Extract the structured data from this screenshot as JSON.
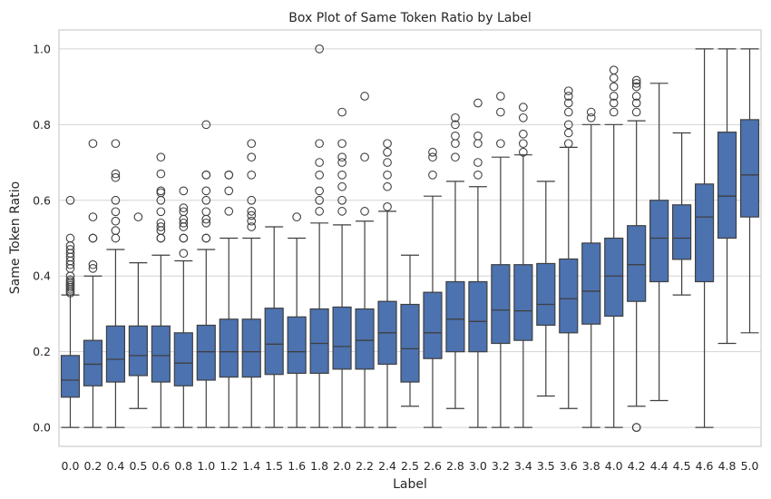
{
  "chart_data": {
    "type": "box",
    "title": "Box Plot of Same Token Ratio by Label",
    "xlabel": "Label",
    "ylabel": "Same Token Ratio",
    "ylim": [
      -0.05,
      1.05
    ],
    "yticks": [
      "0.0",
      "0.2",
      "0.4",
      "0.6",
      "0.8",
      "1.0"
    ],
    "grid": true,
    "colors": {
      "box": "#4c72b0",
      "line": "#3f3f3f",
      "grid": "#d3d3d3"
    },
    "categories": [
      "0.0",
      "0.2",
      "0.4",
      "0.5",
      "0.6",
      "0.8",
      "1.0",
      "1.2",
      "1.4",
      "1.5",
      "1.6",
      "1.8",
      "2.0",
      "2.2",
      "2.4",
      "2.5",
      "2.6",
      "2.8",
      "3.0",
      "3.2",
      "3.4",
      "3.5",
      "3.6",
      "3.8",
      "4.0",
      "4.2",
      "4.4",
      "4.5",
      "4.6",
      "4.8",
      "5.0"
    ],
    "boxes": [
      {
        "whislo": 0.0,
        "q1": 0.08,
        "med": 0.125,
        "q3": 0.19,
        "whishi": 0.35,
        "fliers": [
          0.355,
          0.36,
          0.365,
          0.37,
          0.375,
          0.38,
          0.385,
          0.39,
          0.4,
          0.42,
          0.43,
          0.44,
          0.45,
          0.46,
          0.47,
          0.48,
          0.5,
          0.6
        ]
      },
      {
        "whislo": 0.0,
        "q1": 0.11,
        "med": 0.167,
        "q3": 0.23,
        "whishi": 0.4,
        "fliers": [
          0.42,
          0.43,
          0.5,
          0.5,
          0.556,
          0.75
        ]
      },
      {
        "whislo": 0.0,
        "q1": 0.12,
        "med": 0.18,
        "q3": 0.268,
        "whishi": 0.47,
        "fliers": [
          0.5,
          0.52,
          0.545,
          0.57,
          0.6,
          0.66,
          0.67,
          0.75
        ]
      },
      {
        "whislo": 0.05,
        "q1": 0.137,
        "med": 0.19,
        "q3": 0.268,
        "whishi": 0.435,
        "fliers": [
          0.556
        ]
      },
      {
        "whislo": 0.0,
        "q1": 0.12,
        "med": 0.19,
        "q3": 0.268,
        "whishi": 0.455,
        "fliers": [
          0.5,
          0.5,
          0.52,
          0.53,
          0.54,
          0.57,
          0.6,
          0.62,
          0.625,
          0.67,
          0.714
        ]
      },
      {
        "whislo": 0.0,
        "q1": 0.11,
        "med": 0.17,
        "q3": 0.25,
        "whishi": 0.44,
        "fliers": [
          0.46,
          0.5,
          0.5,
          0.53,
          0.54,
          0.55,
          0.57,
          0.58,
          0.625
        ]
      },
      {
        "whislo": 0.0,
        "q1": 0.125,
        "med": 0.2,
        "q3": 0.27,
        "whishi": 0.47,
        "fliers": [
          0.5,
          0.5,
          0.54,
          0.55,
          0.57,
          0.6,
          0.625,
          0.667,
          0.667,
          0.8
        ]
      },
      {
        "whislo": 0.0,
        "q1": 0.133,
        "med": 0.2,
        "q3": 0.286,
        "whishi": 0.5,
        "fliers": [
          0.571,
          0.625,
          0.667,
          0.667
        ]
      },
      {
        "whislo": 0.0,
        "q1": 0.133,
        "med": 0.2,
        "q3": 0.286,
        "whishi": 0.5,
        "fliers": [
          0.53,
          0.545,
          0.56,
          0.571,
          0.6,
          0.667,
          0.714,
          0.75
        ]
      },
      {
        "whislo": 0.0,
        "q1": 0.14,
        "med": 0.22,
        "q3": 0.315,
        "whishi": 0.53,
        "fliers": []
      },
      {
        "whislo": 0.0,
        "q1": 0.143,
        "med": 0.2,
        "q3": 0.292,
        "whishi": 0.5,
        "fliers": [
          0.556
        ]
      },
      {
        "whislo": 0.0,
        "q1": 0.143,
        "med": 0.222,
        "q3": 0.313,
        "whishi": 0.54,
        "fliers": [
          0.571,
          0.6,
          0.625,
          0.667,
          0.7,
          0.75,
          1.0
        ]
      },
      {
        "whislo": 0.0,
        "q1": 0.154,
        "med": 0.214,
        "q3": 0.318,
        "whishi": 0.535,
        "fliers": [
          0.571,
          0.6,
          0.636,
          0.667,
          0.7,
          0.714,
          0.75,
          0.833
        ]
      },
      {
        "whislo": 0.0,
        "q1": 0.154,
        "med": 0.23,
        "q3": 0.313,
        "whishi": 0.545,
        "fliers": [
          0.571,
          0.714,
          0.875
        ]
      },
      {
        "whislo": 0.0,
        "q1": 0.167,
        "med": 0.25,
        "q3": 0.333,
        "whishi": 0.571,
        "fliers": [
          0.583,
          0.636,
          0.667,
          0.7,
          0.727,
          0.75
        ]
      },
      {
        "whislo": 0.056,
        "q1": 0.12,
        "med": 0.208,
        "q3": 0.325,
        "whishi": 0.455,
        "fliers": []
      },
      {
        "whislo": 0.0,
        "q1": 0.182,
        "med": 0.25,
        "q3": 0.357,
        "whishi": 0.611,
        "fliers": [
          0.667,
          0.714,
          0.727
        ]
      },
      {
        "whislo": 0.05,
        "q1": 0.2,
        "med": 0.286,
        "q3": 0.385,
        "whishi": 0.65,
        "fliers": [
          0.714,
          0.75,
          0.77,
          0.8,
          0.818
        ]
      },
      {
        "whislo": 0.0,
        "q1": 0.2,
        "med": 0.28,
        "q3": 0.385,
        "whishi": 0.636,
        "fliers": [
          0.667,
          0.7,
          0.75,
          0.77,
          0.857
        ]
      },
      {
        "whislo": 0.0,
        "q1": 0.222,
        "med": 0.31,
        "q3": 0.43,
        "whishi": 0.714,
        "fliers": [
          0.75,
          0.833,
          0.875
        ]
      },
      {
        "whislo": 0.0,
        "q1": 0.23,
        "med": 0.308,
        "q3": 0.43,
        "whishi": 0.72,
        "fliers": [
          0.727,
          0.75,
          0.775,
          0.818,
          0.846
        ]
      },
      {
        "whislo": 0.083,
        "q1": 0.27,
        "med": 0.325,
        "q3": 0.433,
        "whishi": 0.65,
        "fliers": []
      },
      {
        "whislo": 0.05,
        "q1": 0.25,
        "med": 0.34,
        "q3": 0.445,
        "whishi": 0.74,
        "fliers": [
          0.75,
          0.778,
          0.8,
          0.833,
          0.857,
          0.875,
          0.889
        ]
      },
      {
        "whislo": 0.0,
        "q1": 0.273,
        "med": 0.36,
        "q3": 0.487,
        "whishi": 0.8,
        "fliers": [
          0.818,
          0.833
        ]
      },
      {
        "whislo": 0.0,
        "q1": 0.294,
        "med": 0.4,
        "q3": 0.5,
        "whishi": 0.8,
        "fliers": [
          0.833,
          0.857,
          0.875,
          0.9,
          0.923,
          0.944
        ]
      },
      {
        "whislo": 0.056,
        "q1": 0.333,
        "med": 0.43,
        "q3": 0.533,
        "whishi": 0.81,
        "fliers": [
          0.0,
          0.0,
          0.833,
          0.857,
          0.875,
          0.9,
          0.909,
          0.917
        ]
      },
      {
        "whislo": 0.071,
        "q1": 0.385,
        "med": 0.5,
        "q3": 0.6,
        "whishi": 0.909,
        "fliers": []
      },
      {
        "whislo": 0.35,
        "q1": 0.444,
        "med": 0.5,
        "q3": 0.588,
        "whishi": 0.778,
        "fliers": []
      },
      {
        "whislo": 0.0,
        "q1": 0.385,
        "med": 0.556,
        "q3": 0.643,
        "whishi": 1.0,
        "fliers": []
      },
      {
        "whislo": 0.222,
        "q1": 0.5,
        "med": 0.611,
        "q3": 0.78,
        "whishi": 1.0,
        "fliers": []
      },
      {
        "whislo": 0.25,
        "q1": 0.556,
        "med": 0.667,
        "q3": 0.813,
        "whishi": 1.0,
        "fliers": []
      }
    ]
  }
}
